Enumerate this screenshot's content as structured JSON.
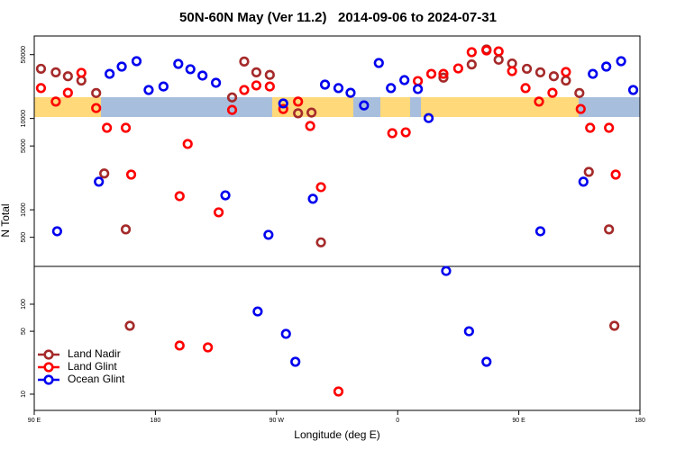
{
  "chart_data": [
    {
      "type": "scatter",
      "title": "50N-60N May (Ver 11.2)   2014-09-06 to 2024-07-31",
      "ylabel": "N Total",
      "log_y": true,
      "xlim": [
        90,
        540
      ],
      "ylim": [
        240,
        80000
      ],
      "yticks": [
        500,
        1000,
        5000,
        10000,
        50000
      ],
      "series": [
        {
          "color": "#a52a2a",
          "x": [
            95,
            106,
            115,
            125,
            136,
            142,
            158,
            246,
            255,
            265,
            237,
            286,
            296,
            303,
            394,
            415,
            426,
            435,
            445,
            456,
            466,
            476,
            485,
            495,
            502,
            517
          ],
          "values": [
            35000,
            32000,
            29000,
            26000,
            19000,
            2500,
            610,
            42000,
            32000,
            30000,
            17000,
            11400,
            11600,
            440,
            28000,
            39000,
            57000,
            44000,
            40000,
            35000,
            32000,
            29000,
            26000,
            19000,
            2600,
            610
          ]
        },
        {
          "color": "#ff0000",
          "x": [
            95,
            106,
            115,
            125,
            136,
            144,
            158,
            162,
            198,
            204,
            227,
            237,
            246,
            255,
            265,
            275,
            286,
            295,
            303,
            356,
            366,
            375,
            385,
            394,
            405,
            415,
            426,
            435,
            445,
            455,
            465,
            475,
            485,
            496,
            503,
            517,
            522
          ],
          "values": [
            21500,
            15300,
            19100,
            31600,
            13000,
            7900,
            7900,
            2430,
            1410,
            5260,
            938,
            12400,
            20500,
            23000,
            22400,
            12700,
            15300,
            8270,
            1770,
            6900,
            7050,
            25700,
            30800,
            30800,
            35300,
            53200,
            55600,
            54300,
            33000,
            21500,
            15300,
            19100,
            32300,
            12700,
            7900,
            7900,
            2430
          ]
        },
        {
          "color": "#0000ee",
          "x": [
            107,
            138,
            146,
            155,
            166,
            175,
            186,
            197,
            206,
            215,
            225,
            232,
            264,
            275,
            297,
            306,
            316,
            325,
            335,
            346,
            355,
            365,
            375,
            383,
            466,
            498,
            505,
            515,
            526,
            535
          ],
          "values": [
            582,
            2030,
            30800,
            37000,
            42400,
            20500,
            22400,
            39600,
            34600,
            29500,
            24600,
            1440,
            532,
            14600,
            1320,
            23500,
            21500,
            19100,
            13900,
            40500,
            21500,
            26300,
            21000,
            10100,
            582,
            2030,
            30800,
            37000,
            42400,
            20500
          ]
        }
      ]
    },
    {
      "type": "scatter",
      "xlabel": "Longitude (deg E)",
      "log_y": true,
      "xlim": [
        90,
        540
      ],
      "ylim": [
        6.6,
        263
      ],
      "yticks": [
        10,
        50,
        100
      ],
      "xticks": [
        {
          "value": 90,
          "label": "90 E"
        },
        180,
        {
          "value": 270,
          "label": "90 W"
        },
        {
          "value": 360,
          "label": "0"
        },
        {
          "value": 450,
          "label": "90 E"
        },
        {
          "value": 540,
          "label": "180"
        }
      ],
      "legend": "lower left",
      "series": [
        {
          "name": "Land Nadir",
          "color": "#a52a2a",
          "x": [
            161,
            521
          ],
          "values": [
            57.5,
            57.5
          ]
        },
        {
          "name": "Land Glint",
          "color": "#ff0000",
          "x": [
            198,
            219,
            316
          ],
          "values": [
            34.7,
            33.1,
            10.7
          ]
        },
        {
          "name": "Ocean Glint",
          "color": "#0000ee",
          "x": [
            256,
            277,
            284,
            396,
            413,
            426
          ],
          "values": [
            83,
            46.8,
            22.9,
            234,
            50,
            22.9
          ]
        }
      ]
    }
  ]
}
